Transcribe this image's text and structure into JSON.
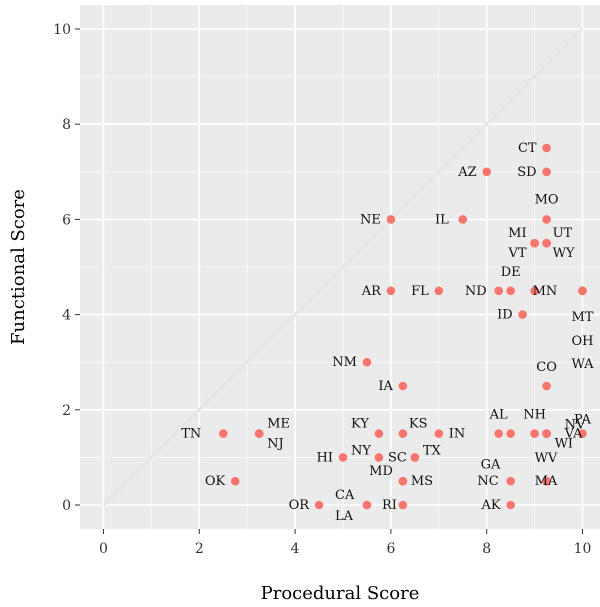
{
  "chart_data": {
    "type": "scatter",
    "title": "",
    "xlabel": "Procedural Score",
    "ylabel": "Functional Score",
    "xlim": [
      -0.5,
      10.4
    ],
    "ylim": [
      -0.5,
      10.4
    ],
    "x_ticks": [
      0,
      2,
      4,
      6,
      8,
      10
    ],
    "y_ticks": [
      0,
      2,
      4,
      6,
      8,
      10
    ],
    "x_tick_labels": [
      "0",
      "2",
      "4",
      "6",
      "8",
      "10"
    ],
    "y_tick_labels": [
      "0",
      "2",
      "4",
      "6",
      "8",
      "10"
    ],
    "grid": true,
    "reference_line": {
      "from": [
        0,
        0
      ],
      "to": [
        10,
        10
      ],
      "color": "#e6e6e6"
    },
    "point_color": "#f8766d",
    "panel_color": "#ebebeb",
    "points": [
      {
        "label": "CT",
        "x": 9.25,
        "y": 7.5
      },
      {
        "label": "SD",
        "x": 9.25,
        "y": 7.0
      },
      {
        "label": "AZ",
        "x": 8.0,
        "y": 7.0
      },
      {
        "label": "MO",
        "x": 9.25,
        "y": 6.0
      },
      {
        "label": "NE",
        "x": 6.0,
        "y": 6.0
      },
      {
        "label": "IL",
        "x": 7.5,
        "y": 6.0
      },
      {
        "label": "MI",
        "x": 9.0,
        "y": 5.5
      },
      {
        "label": "UT",
        "x": 9.25,
        "y": 5.5
      },
      {
        "label": "VT",
        "x": 9.0,
        "y": 5.5
      },
      {
        "label": "WY",
        "x": 9.25,
        "y": 5.5
      },
      {
        "label": "DE",
        "x": 8.5,
        "y": 4.5
      },
      {
        "label": "AR",
        "x": 6.0,
        "y": 4.5
      },
      {
        "label": "FL",
        "x": 7.0,
        "y": 4.5
      },
      {
        "label": "ND",
        "x": 8.25,
        "y": 4.5
      },
      {
        "label": "MN",
        "x": 9.0,
        "y": 4.5
      },
      {
        "label": "MT",
        "x": 10.0,
        "y": 4.5
      },
      {
        "label": "ID",
        "x": 8.75,
        "y": 4.0
      },
      {
        "label": "OH",
        "x": 10.0,
        "y": 4.5
      },
      {
        "label": "WA",
        "x": 10.0,
        "y": 4.5
      },
      {
        "label": "NM",
        "x": 5.5,
        "y": 3.0
      },
      {
        "label": "CO",
        "x": 9.25,
        "y": 2.5
      },
      {
        "label": "IA",
        "x": 6.25,
        "y": 2.5
      },
      {
        "label": "NV",
        "x": 9.25,
        "y": 1.5
      },
      {
        "label": "PA",
        "x": 10.0,
        "y": 1.5
      },
      {
        "label": "AL",
        "x": 8.25,
        "y": 1.5
      },
      {
        "label": "NH",
        "x": 9.0,
        "y": 1.5
      },
      {
        "label": "VA",
        "x": 9.25,
        "y": 1.5
      },
      {
        "label": "TN",
        "x": 2.5,
        "y": 1.5
      },
      {
        "label": "ME",
        "x": 3.25,
        "y": 1.5
      },
      {
        "label": "KY",
        "x": 5.75,
        "y": 1.5
      },
      {
        "label": "KS",
        "x": 6.25,
        "y": 1.5
      },
      {
        "label": "IN",
        "x": 7.0,
        "y": 1.5
      },
      {
        "label": "NJ",
        "x": 3.25,
        "y": 1.5
      },
      {
        "label": "WI",
        "x": 9.25,
        "y": 1.5
      },
      {
        "label": "NY",
        "x": 5.75,
        "y": 1.0
      },
      {
        "label": "TX",
        "x": 6.5,
        "y": 1.0
      },
      {
        "label": "GA",
        "x": 8.5,
        "y": 1.5
      },
      {
        "label": "HI",
        "x": 5.0,
        "y": 1.0
      },
      {
        "label": "SC",
        "x": 6.5,
        "y": 1.0
      },
      {
        "label": "WV",
        "x": 9.25,
        "y": 0.5
      },
      {
        "label": "MD",
        "x": 6.25,
        "y": 0.5
      },
      {
        "label": "MS",
        "x": 6.25,
        "y": 0.5
      },
      {
        "label": "OK",
        "x": 2.75,
        "y": 0.5
      },
      {
        "label": "NC",
        "x": 8.5,
        "y": 0.5
      },
      {
        "label": "CA",
        "x": 5.5,
        "y": 0.0
      },
      {
        "label": "MA",
        "x": 9.25,
        "y": 0.5
      },
      {
        "label": "OR",
        "x": 4.5,
        "y": 0.0
      },
      {
        "label": "RI",
        "x": 6.25,
        "y": 0.0
      },
      {
        "label": "AK",
        "x": 8.5,
        "y": 0.0
      },
      {
        "label": "LA",
        "x": 5.5,
        "y": 0.0
      }
    ]
  }
}
